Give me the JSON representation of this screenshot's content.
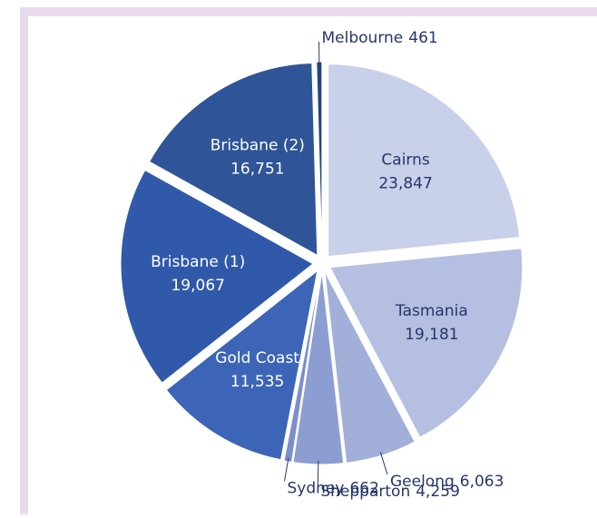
{
  "chart_data": {
    "type": "pie",
    "categories": [
      "Cairns",
      "Tasmania",
      "Geelong",
      "Shepparton",
      "Sydney",
      "Gold Coast",
      "Brisbane (1)",
      "Brisbane (2)",
      "Melbourne"
    ],
    "values": [
      23847,
      19181,
      6063,
      4259,
      662,
      11535,
      19067,
      16751,
      461
    ],
    "value_labels": [
      "23,847",
      "19,181",
      "6,063",
      "4,259",
      "662",
      "11,535",
      "19,067",
      "16,751",
      "461"
    ],
    "colors": [
      "#c9d0e9",
      "#b4bfe1",
      "#a1afd9",
      "#8c9ed1",
      "#7d8fc9",
      "#3c65b7",
      "#3059aa",
      "#2f5497",
      "#22457f"
    ]
  }
}
